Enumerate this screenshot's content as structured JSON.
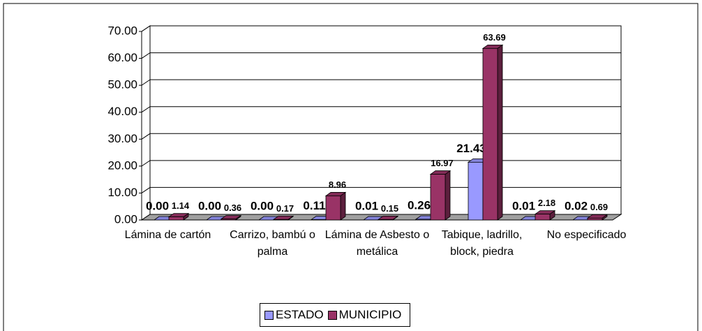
{
  "chart_data": {
    "type": "bar3d",
    "categories": [
      "Lámina de cartón",
      null,
      "Carrizo, bambú o palma",
      null,
      "Lámina de Asbesto o metálica",
      null,
      "Tabique, ladrillo, block, piedra",
      null,
      "No especificado"
    ],
    "series": [
      {
        "name": "ESTADO",
        "color": "#9999ff",
        "values": [
          0,
          0,
          0,
          0.11,
          0.01,
          0.26,
          21.43,
          0.01,
          0.02
        ],
        "value_labels": [
          "0.00",
          "0.00",
          "0.00",
          "0.11",
          "0.01",
          "0.26",
          "21.43",
          "0.01",
          "0.02"
        ]
      },
      {
        "name": "MUNICIPIO",
        "color": "#993366",
        "values": [
          1.14,
          0.36,
          0.17,
          8.96,
          0.15,
          16.97,
          63.69,
          2.18,
          0.69
        ],
        "value_labels": [
          "1.14",
          "0.36",
          "0.17",
          "8.96",
          "0.15",
          "16.97",
          "63.69",
          "2.18",
          "0.69"
        ]
      }
    ],
    "ylim": [
      0,
      70
    ],
    "yticks": [
      {
        "value": 0,
        "label": "0.00"
      },
      {
        "value": 10,
        "label": "10.00"
      },
      {
        "value": 20,
        "label": "20.00"
      },
      {
        "value": 30,
        "label": "30.00"
      },
      {
        "value": 40,
        "label": "40.00"
      },
      {
        "value": 50,
        "label": "50.00"
      },
      {
        "value": 60,
        "label": "60.00"
      },
      {
        "value": 70,
        "label": "70.00"
      }
    ],
    "grid": true,
    "legend": "bottom"
  }
}
